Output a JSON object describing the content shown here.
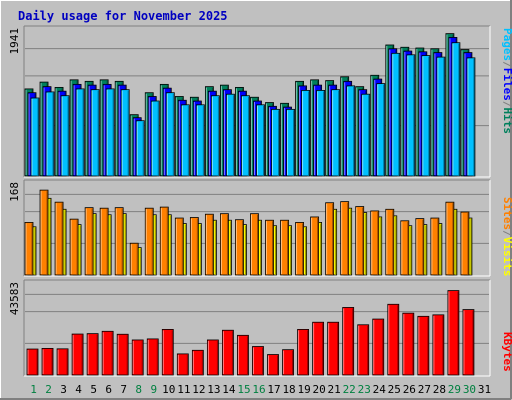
{
  "chart_data": [
    {
      "type": "bar",
      "title": "Daily usage for November 2025",
      "ymax_label": "1941",
      "ylim": [
        0,
        1941
      ],
      "grid": true,
      "legend": [
        "Pages",
        "/",
        "Files",
        "/",
        "Hits"
      ],
      "categories": [
        "1",
        "2",
        "3",
        "4",
        "5",
        "6",
        "7",
        "8",
        "9",
        "10",
        "11",
        "12",
        "13",
        "14",
        "15",
        "16",
        "17",
        "18",
        "19",
        "20",
        "21",
        "22",
        "23",
        "24",
        "25",
        "26",
        "27",
        "28",
        "29",
        "30",
        "31"
      ],
      "series": [
        {
          "name": "Hits",
          "values": [
            1150,
            1240,
            1170,
            1270,
            1250,
            1270,
            1250,
            810,
            1100,
            1210,
            1050,
            1040,
            1180,
            1200,
            1170,
            1040,
            970,
            960,
            1250,
            1270,
            1260,
            1310,
            1180,
            1330,
            1730,
            1700,
            1690,
            1680,
            1880,
            1670,
            0
          ]
        },
        {
          "name": "Files",
          "values": [
            1100,
            1180,
            1120,
            1210,
            1200,
            1210,
            1200,
            770,
            1050,
            1160,
            1000,
            990,
            1120,
            1140,
            1120,
            990,
            920,
            910,
            1190,
            1200,
            1200,
            1250,
            1140,
            1280,
            1680,
            1650,
            1640,
            1630,
            1830,
            1630,
            0
          ]
        },
        {
          "name": "Pages",
          "values": [
            1030,
            1110,
            1060,
            1150,
            1140,
            1150,
            1140,
            730,
            990,
            1100,
            940,
            940,
            1060,
            1080,
            1060,
            940,
            880,
            880,
            1130,
            1130,
            1140,
            1190,
            1080,
            1220,
            1620,
            1600,
            1590,
            1570,
            1760,
            1560,
            0
          ]
        }
      ]
    },
    {
      "type": "bar",
      "ymax_label": "168",
      "ylim": [
        0,
        168
      ],
      "grid": true,
      "legend": [
        "Sites",
        "/",
        "Visits"
      ],
      "categories": [
        "1",
        "2",
        "3",
        "4",
        "5",
        "6",
        "7",
        "8",
        "9",
        "10",
        "11",
        "12",
        "13",
        "14",
        "15",
        "16",
        "17",
        "18",
        "19",
        "20",
        "21",
        "22",
        "23",
        "24",
        "25",
        "26",
        "27",
        "28",
        "29",
        "30",
        "31"
      ],
      "series": [
        {
          "name": "Visits",
          "values": [
            88,
            140,
            120,
            92,
            112,
            110,
            112,
            50,
            110,
            110,
            94,
            94,
            100,
            100,
            92,
            100,
            90,
            90,
            88,
            96,
            120,
            122,
            114,
            106,
            108,
            90,
            92,
            94,
            120,
            104,
            0
          ]
        },
        {
          "name": "Sites",
          "values": [
            96,
            155,
            133,
            102,
            123,
            122,
            123,
            58,
            122,
            124,
            104,
            105,
            111,
            112,
            101,
            112,
            100,
            100,
            96,
            106,
            132,
            134,
            125,
            117,
            120,
            99,
            103,
            104,
            133,
            115,
            0
          ]
        }
      ]
    },
    {
      "type": "bar",
      "ymax_label": "43583",
      "ylim": [
        0,
        43583
      ],
      "grid": true,
      "legend": [
        "KBytes"
      ],
      "categories": [
        "1",
        "2",
        "3",
        "4",
        "5",
        "6",
        "7",
        "8",
        "9",
        "10",
        "11",
        "12",
        "13",
        "14",
        "15",
        "16",
        "17",
        "18",
        "19",
        "20",
        "21",
        "22",
        "23",
        "24",
        "25",
        "26",
        "27",
        "28",
        "29",
        "30",
        "31"
      ],
      "series": [
        {
          "name": "KBytes",
          "values": [
            12300,
            12600,
            12400,
            19400,
            19600,
            20700,
            19300,
            16600,
            17100,
            21600,
            10000,
            11700,
            16600,
            21200,
            18800,
            13500,
            9700,
            12000,
            21600,
            25000,
            25000,
            32000,
            23800,
            26500,
            33500,
            29300,
            27800,
            28500,
            40000,
            31000,
            0
          ]
        }
      ]
    }
  ],
  "x_labels": {
    "weekend_days": [
      "1",
      "2",
      "8",
      "9",
      "15",
      "16",
      "22",
      "23",
      "29",
      "30"
    ],
    "weekend_color": "#008040",
    "weekday_color": "#000000"
  },
  "colors": {
    "hits": "#00805c",
    "files": "#0000ff",
    "pages": "#00c0ff",
    "visits": "#ffff00",
    "sites": "#ff8000",
    "kbytes": "#ff0000",
    "title": "#0000c0",
    "plot_bg": "#c0c0c0",
    "frame_bg": "#c0c0c0"
  }
}
